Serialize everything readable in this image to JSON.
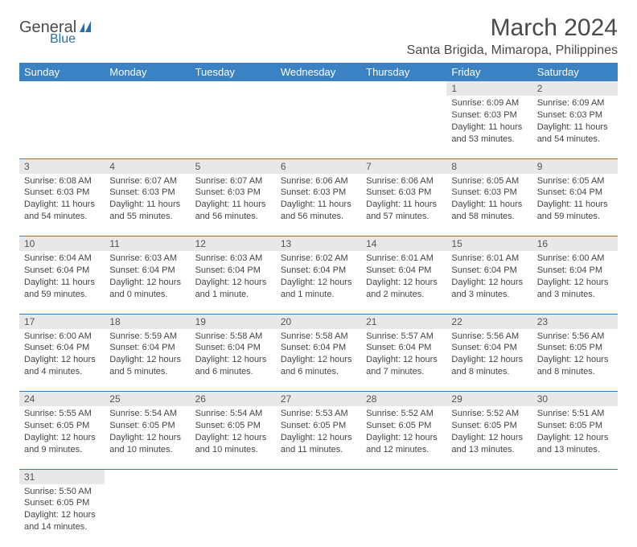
{
  "brand": {
    "name": "General",
    "sub": "Blue"
  },
  "title": "March 2024",
  "location": "Santa Brigida, Mimaropa, Philippines",
  "colors": {
    "header_bg": "#3b82c4",
    "header_text": "#ffffff",
    "daynum_bg": "#e8e8e8",
    "row_border": "#3b82c4",
    "text": "#444444"
  },
  "weekdays": [
    "Sunday",
    "Monday",
    "Tuesday",
    "Wednesday",
    "Thursday",
    "Friday",
    "Saturday"
  ],
  "weeks": [
    [
      null,
      null,
      null,
      null,
      null,
      {
        "n": "1",
        "sunrise": "6:09 AM",
        "sunset": "6:03 PM",
        "daylight": "11 hours and 53 minutes."
      },
      {
        "n": "2",
        "sunrise": "6:09 AM",
        "sunset": "6:03 PM",
        "daylight": "11 hours and 54 minutes."
      }
    ],
    [
      {
        "n": "3",
        "sunrise": "6:08 AM",
        "sunset": "6:03 PM",
        "daylight": "11 hours and 54 minutes."
      },
      {
        "n": "4",
        "sunrise": "6:07 AM",
        "sunset": "6:03 PM",
        "daylight": "11 hours and 55 minutes."
      },
      {
        "n": "5",
        "sunrise": "6:07 AM",
        "sunset": "6:03 PM",
        "daylight": "11 hours and 56 minutes."
      },
      {
        "n": "6",
        "sunrise": "6:06 AM",
        "sunset": "6:03 PM",
        "daylight": "11 hours and 56 minutes."
      },
      {
        "n": "7",
        "sunrise": "6:06 AM",
        "sunset": "6:03 PM",
        "daylight": "11 hours and 57 minutes."
      },
      {
        "n": "8",
        "sunrise": "6:05 AM",
        "sunset": "6:03 PM",
        "daylight": "11 hours and 58 minutes."
      },
      {
        "n": "9",
        "sunrise": "6:05 AM",
        "sunset": "6:04 PM",
        "daylight": "11 hours and 59 minutes."
      }
    ],
    [
      {
        "n": "10",
        "sunrise": "6:04 AM",
        "sunset": "6:04 PM",
        "daylight": "11 hours and 59 minutes."
      },
      {
        "n": "11",
        "sunrise": "6:03 AM",
        "sunset": "6:04 PM",
        "daylight": "12 hours and 0 minutes."
      },
      {
        "n": "12",
        "sunrise": "6:03 AM",
        "sunset": "6:04 PM",
        "daylight": "12 hours and 1 minute."
      },
      {
        "n": "13",
        "sunrise": "6:02 AM",
        "sunset": "6:04 PM",
        "daylight": "12 hours and 1 minute."
      },
      {
        "n": "14",
        "sunrise": "6:01 AM",
        "sunset": "6:04 PM",
        "daylight": "12 hours and 2 minutes."
      },
      {
        "n": "15",
        "sunrise": "6:01 AM",
        "sunset": "6:04 PM",
        "daylight": "12 hours and 3 minutes."
      },
      {
        "n": "16",
        "sunrise": "6:00 AM",
        "sunset": "6:04 PM",
        "daylight": "12 hours and 3 minutes."
      }
    ],
    [
      {
        "n": "17",
        "sunrise": "6:00 AM",
        "sunset": "6:04 PM",
        "daylight": "12 hours and 4 minutes."
      },
      {
        "n": "18",
        "sunrise": "5:59 AM",
        "sunset": "6:04 PM",
        "daylight": "12 hours and 5 minutes."
      },
      {
        "n": "19",
        "sunrise": "5:58 AM",
        "sunset": "6:04 PM",
        "daylight": "12 hours and 6 minutes."
      },
      {
        "n": "20",
        "sunrise": "5:58 AM",
        "sunset": "6:04 PM",
        "daylight": "12 hours and 6 minutes."
      },
      {
        "n": "21",
        "sunrise": "5:57 AM",
        "sunset": "6:04 PM",
        "daylight": "12 hours and 7 minutes."
      },
      {
        "n": "22",
        "sunrise": "5:56 AM",
        "sunset": "6:04 PM",
        "daylight": "12 hours and 8 minutes."
      },
      {
        "n": "23",
        "sunrise": "5:56 AM",
        "sunset": "6:05 PM",
        "daylight": "12 hours and 8 minutes."
      }
    ],
    [
      {
        "n": "24",
        "sunrise": "5:55 AM",
        "sunset": "6:05 PM",
        "daylight": "12 hours and 9 minutes."
      },
      {
        "n": "25",
        "sunrise": "5:54 AM",
        "sunset": "6:05 PM",
        "daylight": "12 hours and 10 minutes."
      },
      {
        "n": "26",
        "sunrise": "5:54 AM",
        "sunset": "6:05 PM",
        "daylight": "12 hours and 10 minutes."
      },
      {
        "n": "27",
        "sunrise": "5:53 AM",
        "sunset": "6:05 PM",
        "daylight": "12 hours and 11 minutes."
      },
      {
        "n": "28",
        "sunrise": "5:52 AM",
        "sunset": "6:05 PM",
        "daylight": "12 hours and 12 minutes."
      },
      {
        "n": "29",
        "sunrise": "5:52 AM",
        "sunset": "6:05 PM",
        "daylight": "12 hours and 13 minutes."
      },
      {
        "n": "30",
        "sunrise": "5:51 AM",
        "sunset": "6:05 PM",
        "daylight": "12 hours and 13 minutes."
      }
    ],
    [
      {
        "n": "31",
        "sunrise": "5:50 AM",
        "sunset": "6:05 PM",
        "daylight": "12 hours and 14 minutes."
      },
      null,
      null,
      null,
      null,
      null,
      null
    ]
  ],
  "labels": {
    "sunrise": "Sunrise:",
    "sunset": "Sunset:",
    "daylight": "Daylight:"
  }
}
